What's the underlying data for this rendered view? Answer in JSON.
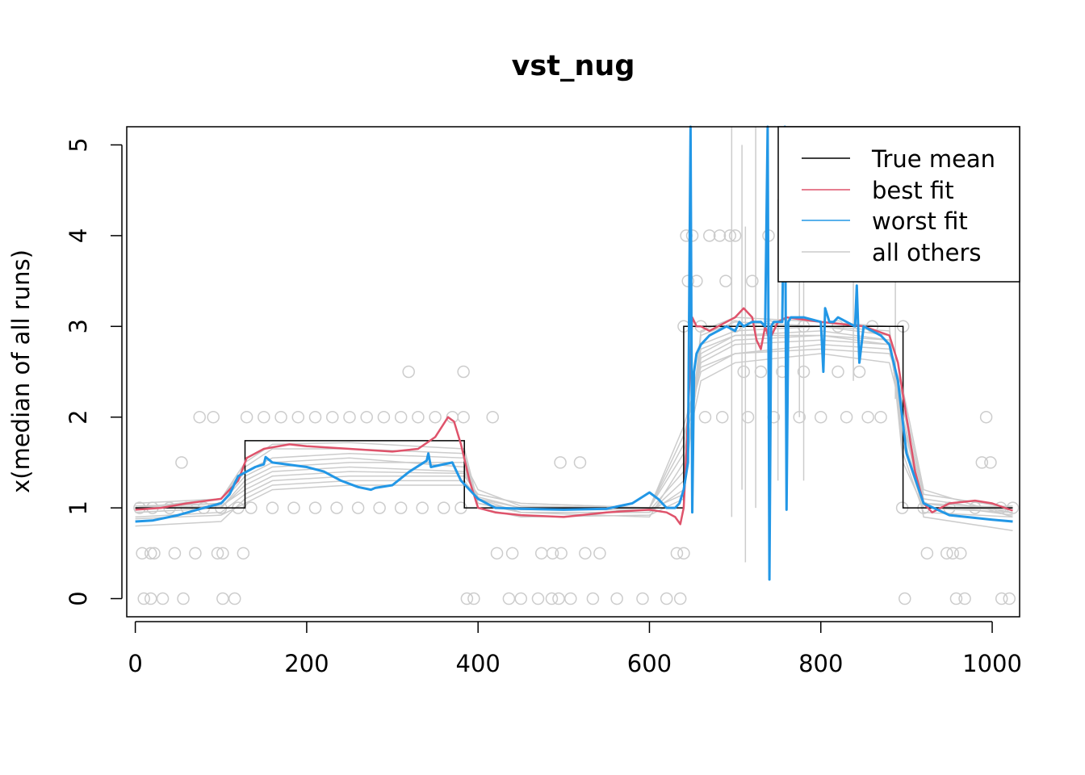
{
  "chart_data": {
    "type": "line",
    "title": "vst_nug",
    "xlabel": "",
    "ylabel": "x(median of all runs)",
    "xlim": [
      -10,
      1032
    ],
    "ylim": [
      -0.2,
      5.2
    ],
    "xticks": [
      0,
      200,
      400,
      600,
      800,
      1000
    ],
    "yticks": [
      0,
      1,
      2,
      3,
      4,
      5
    ],
    "grid": false,
    "legend_position": "top-right",
    "legend": [
      {
        "label": "True mean",
        "color": "#000000"
      },
      {
        "label": "best fit",
        "color": "#DF536B"
      },
      {
        "label": "worst fit",
        "color": "#2297E6"
      },
      {
        "label": "all others",
        "color": "#CCCCCC"
      }
    ],
    "true_mean": {
      "x": [
        0,
        128,
        128,
        384,
        384,
        640,
        640,
        896,
        896,
        1024
      ],
      "y": [
        1,
        1,
        1.74,
        1.74,
        1,
        1,
        3,
        3,
        1,
        1
      ]
    },
    "best_fit": {
      "x": [
        0,
        30,
        60,
        100,
        120,
        130,
        150,
        180,
        200,
        250,
        300,
        330,
        350,
        365,
        372,
        380,
        390,
        400,
        420,
        450,
        500,
        550,
        600,
        620,
        630,
        636,
        640,
        644,
        650,
        655,
        660,
        670,
        690,
        700,
        710,
        720,
        725,
        730,
        735,
        740,
        750,
        760,
        800,
        850,
        880,
        890,
        900,
        910,
        920,
        930,
        950,
        980,
        1000,
        1024
      ],
      "y": [
        0.98,
        1.0,
        1.05,
        1.1,
        1.3,
        1.55,
        1.65,
        1.7,
        1.68,
        1.65,
        1.62,
        1.65,
        1.78,
        2.0,
        1.95,
        1.7,
        1.3,
        1.0,
        0.95,
        0.92,
        0.9,
        0.95,
        0.98,
        0.95,
        0.9,
        0.82,
        1.0,
        1.8,
        3.1,
        3.0,
        3.0,
        2.95,
        3.05,
        3.1,
        3.2,
        3.1,
        2.85,
        2.75,
        3.0,
        2.85,
        3.05,
        3.1,
        3.05,
        3.0,
        2.9,
        2.6,
        2.0,
        1.4,
        1.05,
        0.95,
        1.05,
        1.08,
        1.05,
        0.97
      ]
    },
    "worst_fit": {
      "x": [
        0,
        20,
        50,
        80,
        100,
        110,
        120,
        140,
        150,
        152,
        160,
        200,
        220,
        240,
        260,
        275,
        280,
        300,
        320,
        340,
        342,
        345,
        370,
        380,
        400,
        420,
        450,
        500,
        550,
        580,
        600,
        610,
        620,
        630,
        635,
        640,
        645,
        648,
        650,
        652,
        655,
        660,
        670,
        680,
        690,
        700,
        705,
        710,
        720,
        730,
        735,
        738,
        740,
        742,
        745,
        755,
        758,
        760,
        762,
        765,
        780,
        800,
        803,
        805,
        810,
        815,
        820,
        830,
        840,
        842,
        845,
        850,
        860,
        870,
        880,
        890,
        900,
        920,
        950,
        1000,
        1024
      ],
      "y": [
        0.85,
        0.86,
        0.92,
        1.0,
        1.05,
        1.15,
        1.35,
        1.45,
        1.48,
        1.56,
        1.5,
        1.45,
        1.4,
        1.3,
        1.23,
        1.2,
        1.22,
        1.25,
        1.4,
        1.52,
        1.6,
        1.45,
        1.5,
        1.3,
        1.1,
        1.0,
        0.99,
        0.98,
        0.99,
        1.05,
        1.17,
        1.1,
        1.0,
        1.0,
        1.05,
        1.2,
        1.5,
        5.2,
        0.95,
        2.5,
        2.7,
        2.8,
        2.9,
        2.95,
        3.0,
        2.95,
        3.05,
        3.0,
        3.05,
        3.05,
        3.0,
        5.2,
        0.21,
        3.0,
        3.05,
        3.05,
        5.2,
        0.98,
        3.05,
        3.1,
        3.1,
        3.05,
        2.5,
        3.2,
        3.05,
        3.05,
        3.1,
        3.05,
        3.0,
        3.45,
        2.6,
        3.0,
        2.95,
        2.9,
        2.8,
        2.4,
        1.6,
        1.05,
        0.92,
        0.87,
        0.85
      ]
    },
    "others": [
      {
        "x": [
          0,
          100,
          128,
          160,
          250,
          384,
          400,
          450,
          600,
          640,
          660,
          700,
          800,
          880,
          896,
          920,
          1024
        ],
        "y": [
          1.0,
          1.05,
          1.35,
          1.5,
          1.55,
          1.45,
          1.05,
          0.95,
          0.95,
          1.3,
          2.7,
          2.9,
          2.95,
          2.85,
          1.8,
          1.0,
          0.95
        ]
      },
      {
        "x": [
          0,
          100,
          128,
          160,
          250,
          384,
          400,
          450,
          600,
          640,
          660,
          700,
          800,
          880,
          896,
          920,
          1024
        ],
        "y": [
          0.95,
          1.0,
          1.25,
          1.4,
          1.45,
          1.4,
          1.1,
          1.0,
          1.0,
          1.6,
          2.6,
          2.8,
          2.85,
          2.8,
          2.0,
          1.05,
          1.0
        ]
      },
      {
        "x": [
          0,
          100,
          128,
          160,
          250,
          384,
          400,
          450,
          600,
          640,
          660,
          700,
          800,
          880,
          896,
          920,
          1024
        ],
        "y": [
          1.0,
          1.1,
          1.45,
          1.65,
          1.65,
          1.6,
          1.0,
          0.9,
          0.92,
          1.1,
          2.9,
          3.05,
          3.0,
          2.95,
          1.6,
          0.95,
          0.9
        ]
      },
      {
        "x": [
          0,
          100,
          128,
          160,
          250,
          384,
          400,
          450,
          600,
          640,
          660,
          700,
          800,
          880,
          896,
          920,
          1024
        ],
        "y": [
          0.9,
          0.95,
          1.15,
          1.3,
          1.35,
          1.35,
          1.15,
          1.05,
          1.0,
          1.8,
          2.5,
          2.7,
          2.8,
          2.75,
          2.2,
          1.15,
          1.0
        ]
      },
      {
        "x": [
          0,
          100,
          128,
          160,
          250,
          384,
          400,
          450,
          600,
          640,
          660,
          700,
          800,
          880,
          896,
          920,
          1024
        ],
        "y": [
          1.02,
          1.05,
          1.4,
          1.55,
          1.6,
          1.55,
          1.05,
          0.95,
          0.95,
          1.2,
          2.8,
          2.95,
          3.0,
          2.9,
          1.7,
          1.0,
          0.98
        ]
      },
      {
        "x": [
          0,
          100,
          128,
          160,
          250,
          384,
          400,
          450,
          600,
          640,
          660,
          700,
          800,
          880,
          896,
          920,
          1024
        ],
        "y": [
          0.8,
          0.85,
          1.1,
          1.25,
          1.3,
          1.3,
          1.1,
          0.95,
          0.9,
          1.5,
          2.4,
          2.6,
          2.7,
          2.6,
          2.0,
          0.9,
          0.75
        ]
      },
      {
        "x": [
          0,
          100,
          128,
          160,
          250,
          384,
          400,
          450,
          600,
          640,
          660,
          700,
          800,
          880,
          896,
          920,
          1024
        ],
        "y": [
          1.05,
          1.1,
          1.5,
          1.7,
          1.72,
          1.65,
          1.05,
          0.98,
          0.98,
          1.15,
          2.95,
          3.1,
          3.05,
          3.0,
          1.5,
          1.0,
          1.02
        ]
      },
      {
        "x": [
          0,
          100,
          128,
          160,
          250,
          384,
          400,
          450,
          600,
          640,
          660,
          700,
          800,
          880,
          896,
          920,
          1024
        ],
        "y": [
          0.95,
          1.0,
          1.3,
          1.45,
          1.5,
          1.5,
          1.2,
          1.02,
          1.0,
          1.7,
          2.75,
          2.9,
          2.9,
          2.85,
          2.1,
          1.1,
          0.95
        ]
      },
      {
        "x": [
          0,
          100,
          128,
          160,
          250,
          384,
          400,
          450,
          600,
          640,
          660,
          700,
          800,
          880,
          896,
          920,
          1024
        ],
        "y": [
          1.0,
          1.02,
          1.2,
          1.35,
          1.4,
          1.38,
          1.12,
          1.0,
          0.97,
          1.4,
          2.65,
          2.85,
          2.9,
          2.8,
          1.9,
          1.05,
          0.92
        ]
      },
      {
        "x": [
          0,
          100,
          128,
          160,
          250,
          384,
          400,
          450,
          600,
          640,
          660,
          700,
          800,
          880,
          896,
          920,
          1024
        ],
        "y": [
          0.88,
          0.92,
          1.05,
          1.2,
          1.25,
          1.25,
          1.15,
          1.05,
          1.0,
          1.9,
          2.55,
          2.7,
          2.75,
          2.7,
          2.3,
          1.2,
          0.9
        ]
      }
    ],
    "scatter_points": [
      {
        "x": 5,
        "y": 1
      },
      {
        "x": 20,
        "y": 1
      },
      {
        "x": 40,
        "y": 1
      },
      {
        "x": 60,
        "y": 1
      },
      {
        "x": 80,
        "y": 1
      },
      {
        "x": 100,
        "y": 1
      },
      {
        "x": 120,
        "y": 1
      },
      {
        "x": 8,
        "y": 0.5
      },
      {
        "x": 18,
        "y": 0.5
      },
      {
        "x": 22,
        "y": 0.5
      },
      {
        "x": 46,
        "y": 0.5
      },
      {
        "x": 70,
        "y": 0.5
      },
      {
        "x": 96,
        "y": 0.5
      },
      {
        "x": 102,
        "y": 0.5
      },
      {
        "x": 126,
        "y": 0.5
      },
      {
        "x": 10,
        "y": 0
      },
      {
        "x": 18,
        "y": 0
      },
      {
        "x": 32,
        "y": 0
      },
      {
        "x": 56,
        "y": 0
      },
      {
        "x": 102,
        "y": 0
      },
      {
        "x": 116,
        "y": 0
      },
      {
        "x": 54,
        "y": 1.5
      },
      {
        "x": 75,
        "y": 2
      },
      {
        "x": 91,
        "y": 2
      },
      {
        "x": 130,
        "y": 2
      },
      {
        "x": 150,
        "y": 2
      },
      {
        "x": 170,
        "y": 2
      },
      {
        "x": 190,
        "y": 2
      },
      {
        "x": 210,
        "y": 2
      },
      {
        "x": 230,
        "y": 2
      },
      {
        "x": 250,
        "y": 2
      },
      {
        "x": 270,
        "y": 2
      },
      {
        "x": 290,
        "y": 2
      },
      {
        "x": 310,
        "y": 2
      },
      {
        "x": 330,
        "y": 2
      },
      {
        "x": 350,
        "y": 2
      },
      {
        "x": 370,
        "y": 2
      },
      {
        "x": 383,
        "y": 2
      },
      {
        "x": 135,
        "y": 1
      },
      {
        "x": 160,
        "y": 1
      },
      {
        "x": 185,
        "y": 1
      },
      {
        "x": 210,
        "y": 1
      },
      {
        "x": 235,
        "y": 1
      },
      {
        "x": 260,
        "y": 1
      },
      {
        "x": 285,
        "y": 1
      },
      {
        "x": 310,
        "y": 1
      },
      {
        "x": 335,
        "y": 1
      },
      {
        "x": 360,
        "y": 1
      },
      {
        "x": 380,
        "y": 1
      },
      {
        "x": 319,
        "y": 2.5
      },
      {
        "x": 383,
        "y": 2.5
      },
      {
        "x": 387,
        "y": 0
      },
      {
        "x": 395,
        "y": 0
      },
      {
        "x": 417,
        "y": 2
      },
      {
        "x": 422,
        "y": 0.5
      },
      {
        "x": 440,
        "y": 0.5
      },
      {
        "x": 474,
        "y": 0.5
      },
      {
        "x": 487,
        "y": 0.5
      },
      {
        "x": 497,
        "y": 0.5
      },
      {
        "x": 525,
        "y": 0.5
      },
      {
        "x": 542,
        "y": 0.5
      },
      {
        "x": 632,
        "y": 0.5
      },
      {
        "x": 640,
        "y": 0.5
      },
      {
        "x": 436,
        "y": 0
      },
      {
        "x": 450,
        "y": 0
      },
      {
        "x": 470,
        "y": 0
      },
      {
        "x": 486,
        "y": 0
      },
      {
        "x": 494,
        "y": 0
      },
      {
        "x": 508,
        "y": 0
      },
      {
        "x": 534,
        "y": 0
      },
      {
        "x": 562,
        "y": 0
      },
      {
        "x": 592,
        "y": 0
      },
      {
        "x": 620,
        "y": 0
      },
      {
        "x": 636,
        "y": 0
      },
      {
        "x": 496,
        "y": 1.5
      },
      {
        "x": 519,
        "y": 1.5
      },
      {
        "x": 640,
        "y": 3
      },
      {
        "x": 660,
        "y": 3
      },
      {
        "x": 700,
        "y": 3
      },
      {
        "x": 740,
        "y": 3
      },
      {
        "x": 780,
        "y": 3
      },
      {
        "x": 820,
        "y": 3
      },
      {
        "x": 860,
        "y": 3
      },
      {
        "x": 896,
        "y": 3
      },
      {
        "x": 643,
        "y": 4
      },
      {
        "x": 650,
        "y": 4
      },
      {
        "x": 670,
        "y": 4
      },
      {
        "x": 682,
        "y": 4
      },
      {
        "x": 694,
        "y": 4
      },
      {
        "x": 700,
        "y": 4
      },
      {
        "x": 739,
        "y": 4
      },
      {
        "x": 760,
        "y": 4
      },
      {
        "x": 792,
        "y": 4
      },
      {
        "x": 645,
        "y": 3.5
      },
      {
        "x": 655,
        "y": 3.5
      },
      {
        "x": 689,
        "y": 3.5
      },
      {
        "x": 720,
        "y": 3.5
      },
      {
        "x": 665,
        "y": 2
      },
      {
        "x": 685,
        "y": 2
      },
      {
        "x": 715,
        "y": 2
      },
      {
        "x": 745,
        "y": 2
      },
      {
        "x": 775,
        "y": 2
      },
      {
        "x": 800,
        "y": 2
      },
      {
        "x": 830,
        "y": 2
      },
      {
        "x": 855,
        "y": 2
      },
      {
        "x": 870,
        "y": 2
      },
      {
        "x": 710,
        "y": 2.5
      },
      {
        "x": 730,
        "y": 2.5
      },
      {
        "x": 755,
        "y": 2.5
      },
      {
        "x": 780,
        "y": 2.5
      },
      {
        "x": 820,
        "y": 2.5
      },
      {
        "x": 845,
        "y": 2.5
      },
      {
        "x": 895,
        "y": 1
      },
      {
        "x": 920,
        "y": 1
      },
      {
        "x": 950,
        "y": 1
      },
      {
        "x": 980,
        "y": 1
      },
      {
        "x": 1010,
        "y": 1
      },
      {
        "x": 1024,
        "y": 1
      },
      {
        "x": 924,
        "y": 0.5
      },
      {
        "x": 947,
        "y": 0.5
      },
      {
        "x": 954,
        "y": 0.5
      },
      {
        "x": 963,
        "y": 0.5
      },
      {
        "x": 898,
        "y": 0
      },
      {
        "x": 958,
        "y": 0
      },
      {
        "x": 968,
        "y": 0
      },
      {
        "x": 1011,
        "y": 0
      },
      {
        "x": 1020,
        "y": 0
      },
      {
        "x": 988,
        "y": 1.5
      },
      {
        "x": 998,
        "y": 1.5
      },
      {
        "x": 993,
        "y": 2
      }
    ],
    "vertical_spikes": [
      {
        "x": 696,
        "ymin": 0.9,
        "ymax": 5.2
      },
      {
        "x": 708,
        "ymin": 1.2,
        "ymax": 5.0
      },
      {
        "x": 712,
        "ymin": 0.4,
        "ymax": 4.1
      },
      {
        "x": 724,
        "ymin": 1.0,
        "ymax": 5.2
      },
      {
        "x": 750,
        "ymin": 1.3,
        "ymax": 4.4
      },
      {
        "x": 775,
        "ymin": 2.0,
        "ymax": 5.2
      },
      {
        "x": 780,
        "ymin": 1.3,
        "ymax": 4.8
      },
      {
        "x": 838,
        "ymin": 2.4,
        "ymax": 4.6
      },
      {
        "x": 887,
        "ymin": 2.2,
        "ymax": 5.2
      }
    ]
  }
}
